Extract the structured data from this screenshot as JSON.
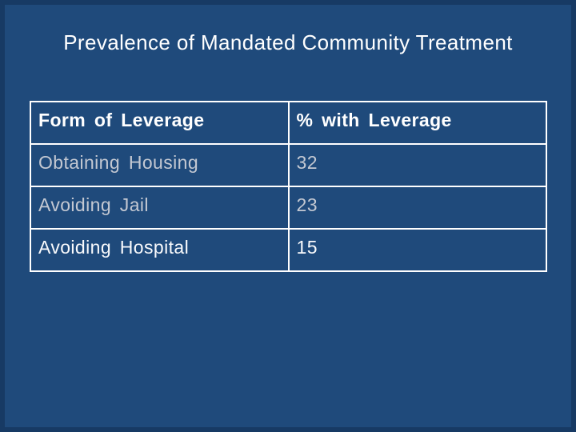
{
  "slide": {
    "title": "Prevalence of Mandated Community Treatment"
  },
  "table": {
    "columns": [
      "Form of Leverage",
      "% with Leverage"
    ],
    "rows": [
      {
        "label": "Obtaining Housing",
        "value": "32"
      },
      {
        "label": "Avoiding Jail",
        "value": "23"
      },
      {
        "label": "Avoiding Hospital",
        "value": "15"
      }
    ]
  },
  "colors": {
    "background": "#1F4A7B",
    "edge_shade": "#1A4069",
    "table_border": "#FFFFFF",
    "header_text": "#FFFFFF",
    "muted_row_text": "#C3C8D2",
    "bright_row_text": "#F9FAFC"
  }
}
